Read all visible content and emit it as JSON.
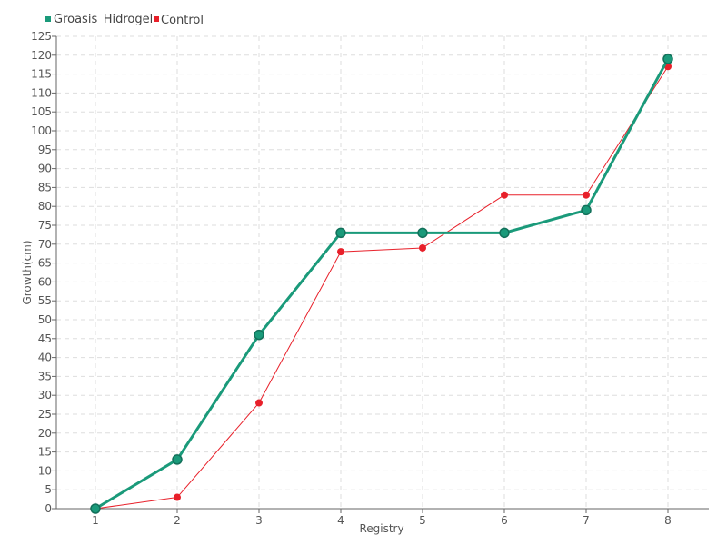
{
  "chart_data": {
    "type": "line",
    "title": "",
    "xlabel": "Registry",
    "ylabel": "Growth(cm)",
    "categories": [
      "1",
      "2",
      "3",
      "4",
      "5",
      "6",
      "7",
      "8"
    ],
    "ylim": [
      0,
      125
    ],
    "ytick_step": 5,
    "grid": true,
    "legend_position": "top-left",
    "series": [
      {
        "name": "Groasis_Hidrogel",
        "color": "#1a9a7a",
        "values": [
          0,
          13,
          46,
          73,
          73,
          73,
          79,
          119
        ]
      },
      {
        "name": "Control",
        "color": "#e8202a",
        "values": [
          0,
          3,
          28,
          68,
          69,
          83,
          83,
          117
        ]
      }
    ]
  }
}
